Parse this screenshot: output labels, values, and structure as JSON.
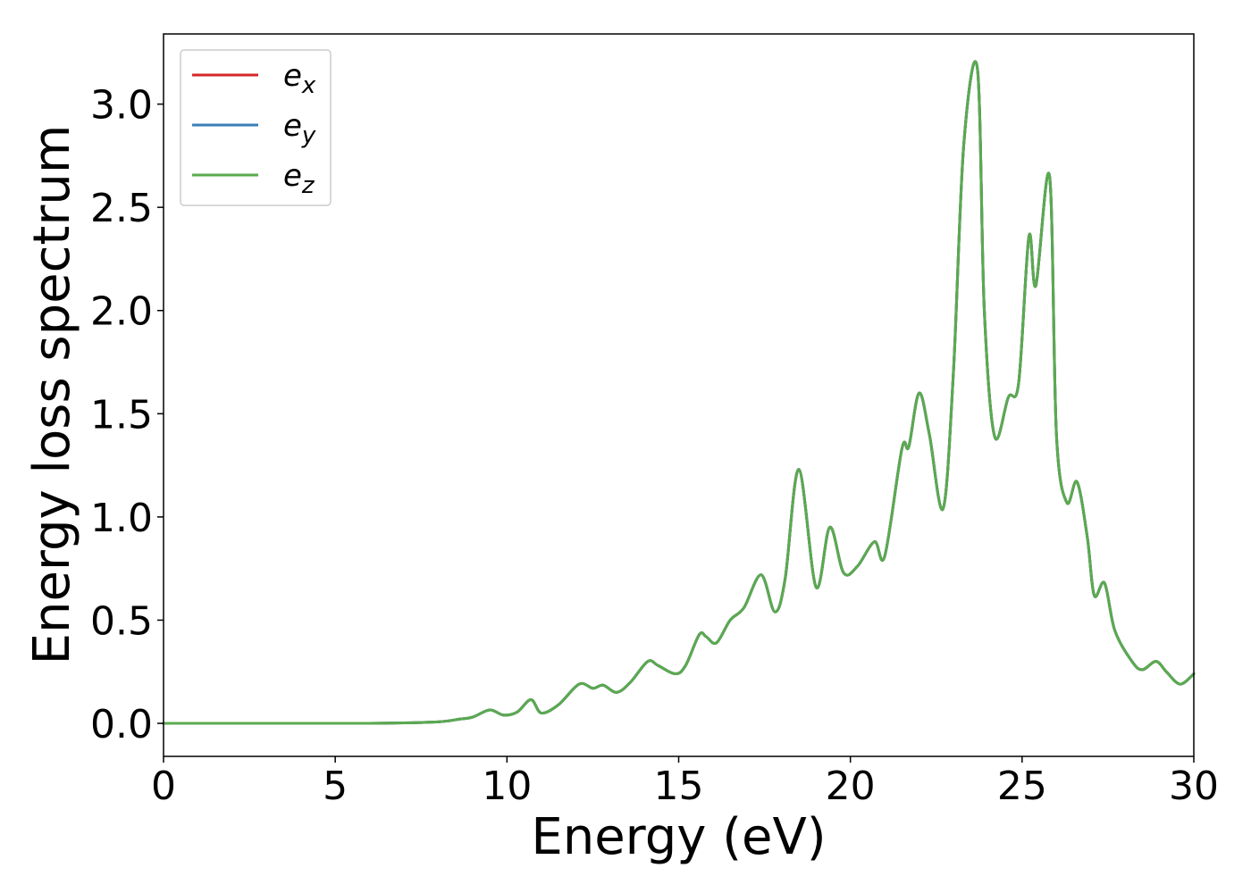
{
  "chart_data": {
    "type": "line",
    "title": "",
    "xlabel": "Energy (eV)",
    "ylabel": "Energy loss spectrum",
    "xlim": [
      0,
      30
    ],
    "ylim": [
      -0.16,
      3.34
    ],
    "xticks": [
      "0",
      "5",
      "10",
      "15",
      "20",
      "25",
      "30"
    ],
    "yticks": [
      "0.0",
      "0.5",
      "1.0",
      "1.5",
      "2.0",
      "2.5",
      "3.0"
    ],
    "grid": false,
    "legend_position": "top-left",
    "x": [
      0,
      1,
      2,
      3,
      4,
      5,
      6,
      7,
      7.5,
      8,
      8.3,
      8.6,
      9.0,
      9.5,
      9.9,
      10.3,
      10.7,
      11.0,
      11.5,
      12.1,
      12.5,
      12.8,
      13.2,
      13.6,
      14.1,
      14.4,
      14.9,
      15.2,
      15.6,
      15.8,
      16.1,
      16.5,
      16.9,
      17.4,
      17.8,
      18.1,
      18.5,
      19.0,
      19.4,
      19.8,
      20.2,
      20.7,
      21.0,
      21.5,
      21.7,
      22.0,
      22.3,
      22.7,
      23.0,
      23.3,
      23.7,
      23.9,
      24.2,
      24.6,
      24.9,
      25.2,
      25.4,
      25.8,
      26.0,
      26.3,
      26.6,
      26.9,
      27.1,
      27.4,
      27.7,
      28.2,
      28.5,
      28.9,
      29.2,
      29.6,
      30.0
    ],
    "series": [
      {
        "name": "e_x",
        "color": "#d62728",
        "values": [
          0,
          0,
          0,
          0,
          0,
          0,
          0,
          0.002,
          0.004,
          0.007,
          0.012,
          0.02,
          0.03,
          0.065,
          0.04,
          0.055,
          0.115,
          0.05,
          0.09,
          0.19,
          0.17,
          0.185,
          0.15,
          0.2,
          0.3,
          0.28,
          0.24,
          0.28,
          0.43,
          0.42,
          0.39,
          0.5,
          0.56,
          0.72,
          0.54,
          0.7,
          1.23,
          0.66,
          0.95,
          0.73,
          0.76,
          0.88,
          0.81,
          1.33,
          1.34,
          1.6,
          1.4,
          1.04,
          1.7,
          2.8,
          3.17,
          2.0,
          1.39,
          1.58,
          1.65,
          2.36,
          2.12,
          2.65,
          1.4,
          1.07,
          1.17,
          0.9,
          0.62,
          0.68,
          0.45,
          0.3,
          0.26,
          0.3,
          0.25,
          0.19,
          0.24
        ]
      },
      {
        "name": "e_y",
        "color": "#1f77b4",
        "values": [
          0,
          0,
          0,
          0,
          0,
          0,
          0,
          0.002,
          0.004,
          0.007,
          0.012,
          0.02,
          0.03,
          0.065,
          0.04,
          0.055,
          0.115,
          0.05,
          0.09,
          0.19,
          0.17,
          0.185,
          0.15,
          0.2,
          0.3,
          0.28,
          0.24,
          0.28,
          0.43,
          0.42,
          0.39,
          0.5,
          0.56,
          0.72,
          0.54,
          0.7,
          1.23,
          0.66,
          0.95,
          0.73,
          0.76,
          0.88,
          0.81,
          1.33,
          1.34,
          1.6,
          1.4,
          1.04,
          1.7,
          2.8,
          3.17,
          2.0,
          1.39,
          1.58,
          1.65,
          2.36,
          2.12,
          2.65,
          1.4,
          1.07,
          1.17,
          0.9,
          0.62,
          0.68,
          0.45,
          0.3,
          0.26,
          0.3,
          0.25,
          0.19,
          0.24
        ]
      },
      {
        "name": "e_z",
        "color": "#5aaa4f",
        "values": [
          0,
          0,
          0,
          0,
          0,
          0,
          0,
          0.002,
          0.004,
          0.007,
          0.012,
          0.02,
          0.03,
          0.065,
          0.04,
          0.055,
          0.115,
          0.05,
          0.09,
          0.19,
          0.17,
          0.185,
          0.15,
          0.2,
          0.3,
          0.28,
          0.24,
          0.28,
          0.43,
          0.42,
          0.39,
          0.5,
          0.56,
          0.72,
          0.54,
          0.7,
          1.23,
          0.66,
          0.95,
          0.73,
          0.76,
          0.88,
          0.81,
          1.33,
          1.34,
          1.6,
          1.4,
          1.04,
          1.7,
          2.8,
          3.17,
          2.0,
          1.39,
          1.58,
          1.65,
          2.36,
          2.12,
          2.65,
          1.4,
          1.07,
          1.17,
          0.9,
          0.62,
          0.68,
          0.45,
          0.3,
          0.26,
          0.3,
          0.25,
          0.19,
          0.24
        ]
      }
    ],
    "legend": [
      {
        "base": "e",
        "sub": "x",
        "color": "#d62728"
      },
      {
        "base": "e",
        "sub": "y",
        "color": "#3a7fb8"
      },
      {
        "base": "e",
        "sub": "z",
        "color": "#5aaa4f"
      }
    ]
  }
}
